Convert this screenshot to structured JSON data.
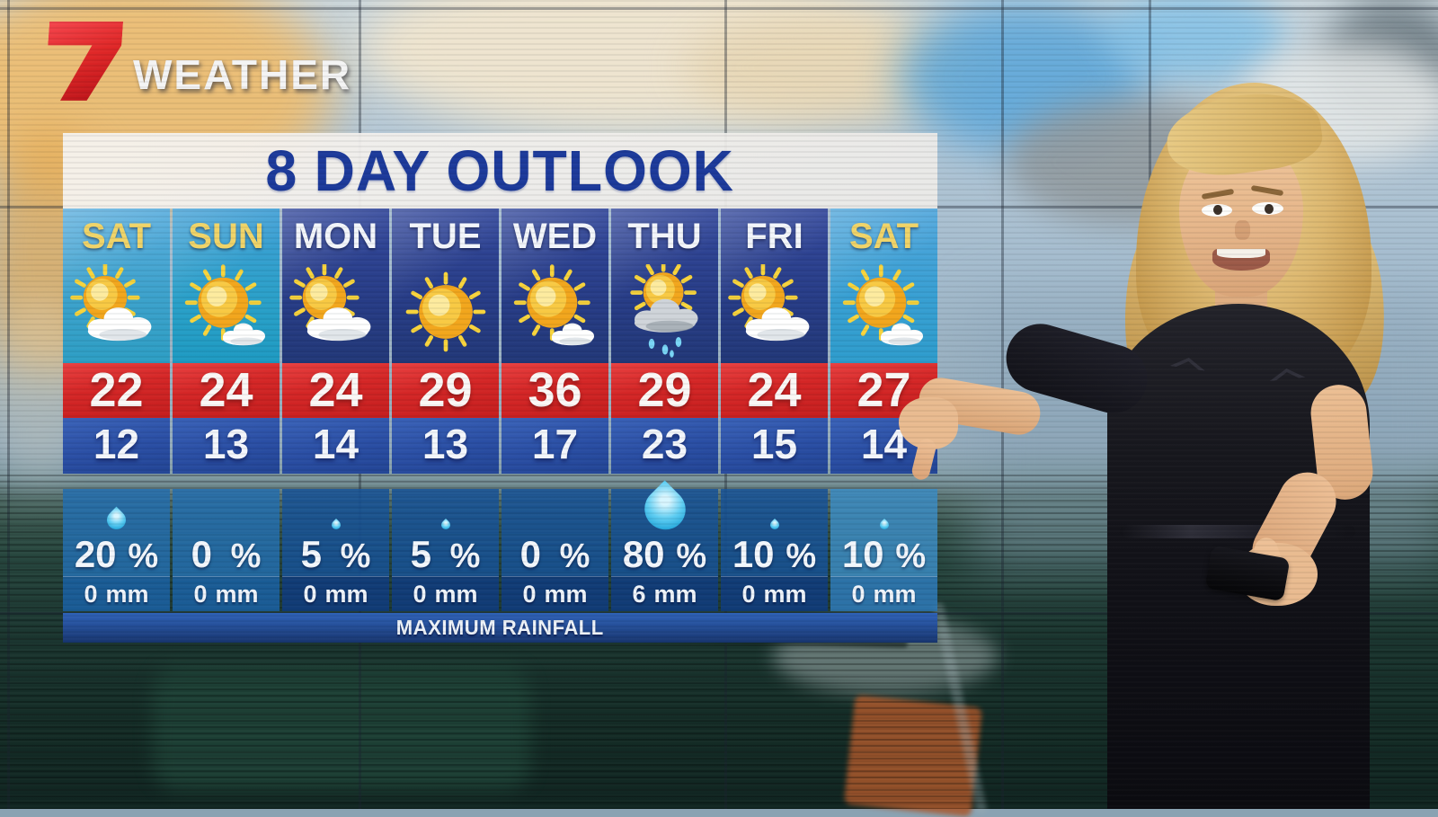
{
  "brand": {
    "logo": "7",
    "label": "WEATHER"
  },
  "title": "8 DAY OUTLOOK",
  "footer_label": "MAXIMUM RAINFALL",
  "labels": {
    "percent": "%",
    "mm": "mm"
  },
  "colors": {
    "logo_red": "#d7282f",
    "title_text": "#1c3a9a",
    "high_temp_bg": "#d42a2a",
    "low_temp_bg": "#2a4da6",
    "weekend_panel": "#3aa0d0",
    "weekday_panel": "#2a3f8c",
    "weekend_day_text": "#f0d469",
    "weekday_day_text": "#ffffff"
  },
  "chart_data": {
    "type": "table",
    "title": "8 DAY OUTLOOK",
    "footer": "MAXIMUM RAINFALL",
    "columns": [
      "day",
      "icon",
      "high",
      "low",
      "rain_chance_pct",
      "max_rainfall_mm"
    ],
    "days": [
      {
        "day": "SAT",
        "icon": "partly-cloudy",
        "high": 22,
        "low": 12,
        "chance": 20,
        "mm": 0,
        "drop": "small",
        "weekend": true
      },
      {
        "day": "SUN",
        "icon": "mostly-sunny",
        "high": 24,
        "low": 13,
        "chance": 0,
        "mm": 0,
        "drop": "none",
        "weekend": true
      },
      {
        "day": "MON",
        "icon": "partly-cloudy",
        "high": 24,
        "low": 14,
        "chance": 5,
        "mm": 0,
        "drop": "tiny",
        "weekend": false
      },
      {
        "day": "TUE",
        "icon": "sunny",
        "high": 29,
        "low": 13,
        "chance": 5,
        "mm": 0,
        "drop": "tiny",
        "weekend": false
      },
      {
        "day": "WED",
        "icon": "mostly-sunny",
        "high": 36,
        "low": 17,
        "chance": 0,
        "mm": 0,
        "drop": "none",
        "weekend": false
      },
      {
        "day": "THU",
        "icon": "showers",
        "high": 29,
        "low": 23,
        "chance": 80,
        "mm": 6,
        "drop": "large",
        "weekend": false
      },
      {
        "day": "FRI",
        "icon": "partly-cloudy",
        "high": 24,
        "low": 15,
        "chance": 10,
        "mm": 0,
        "drop": "tiny",
        "weekend": false
      },
      {
        "day": "SAT",
        "icon": "mostly-sunny",
        "high": 27,
        "low": 14,
        "chance": 10,
        "mm": 0,
        "drop": "tiny",
        "weekend": true
      }
    ]
  }
}
